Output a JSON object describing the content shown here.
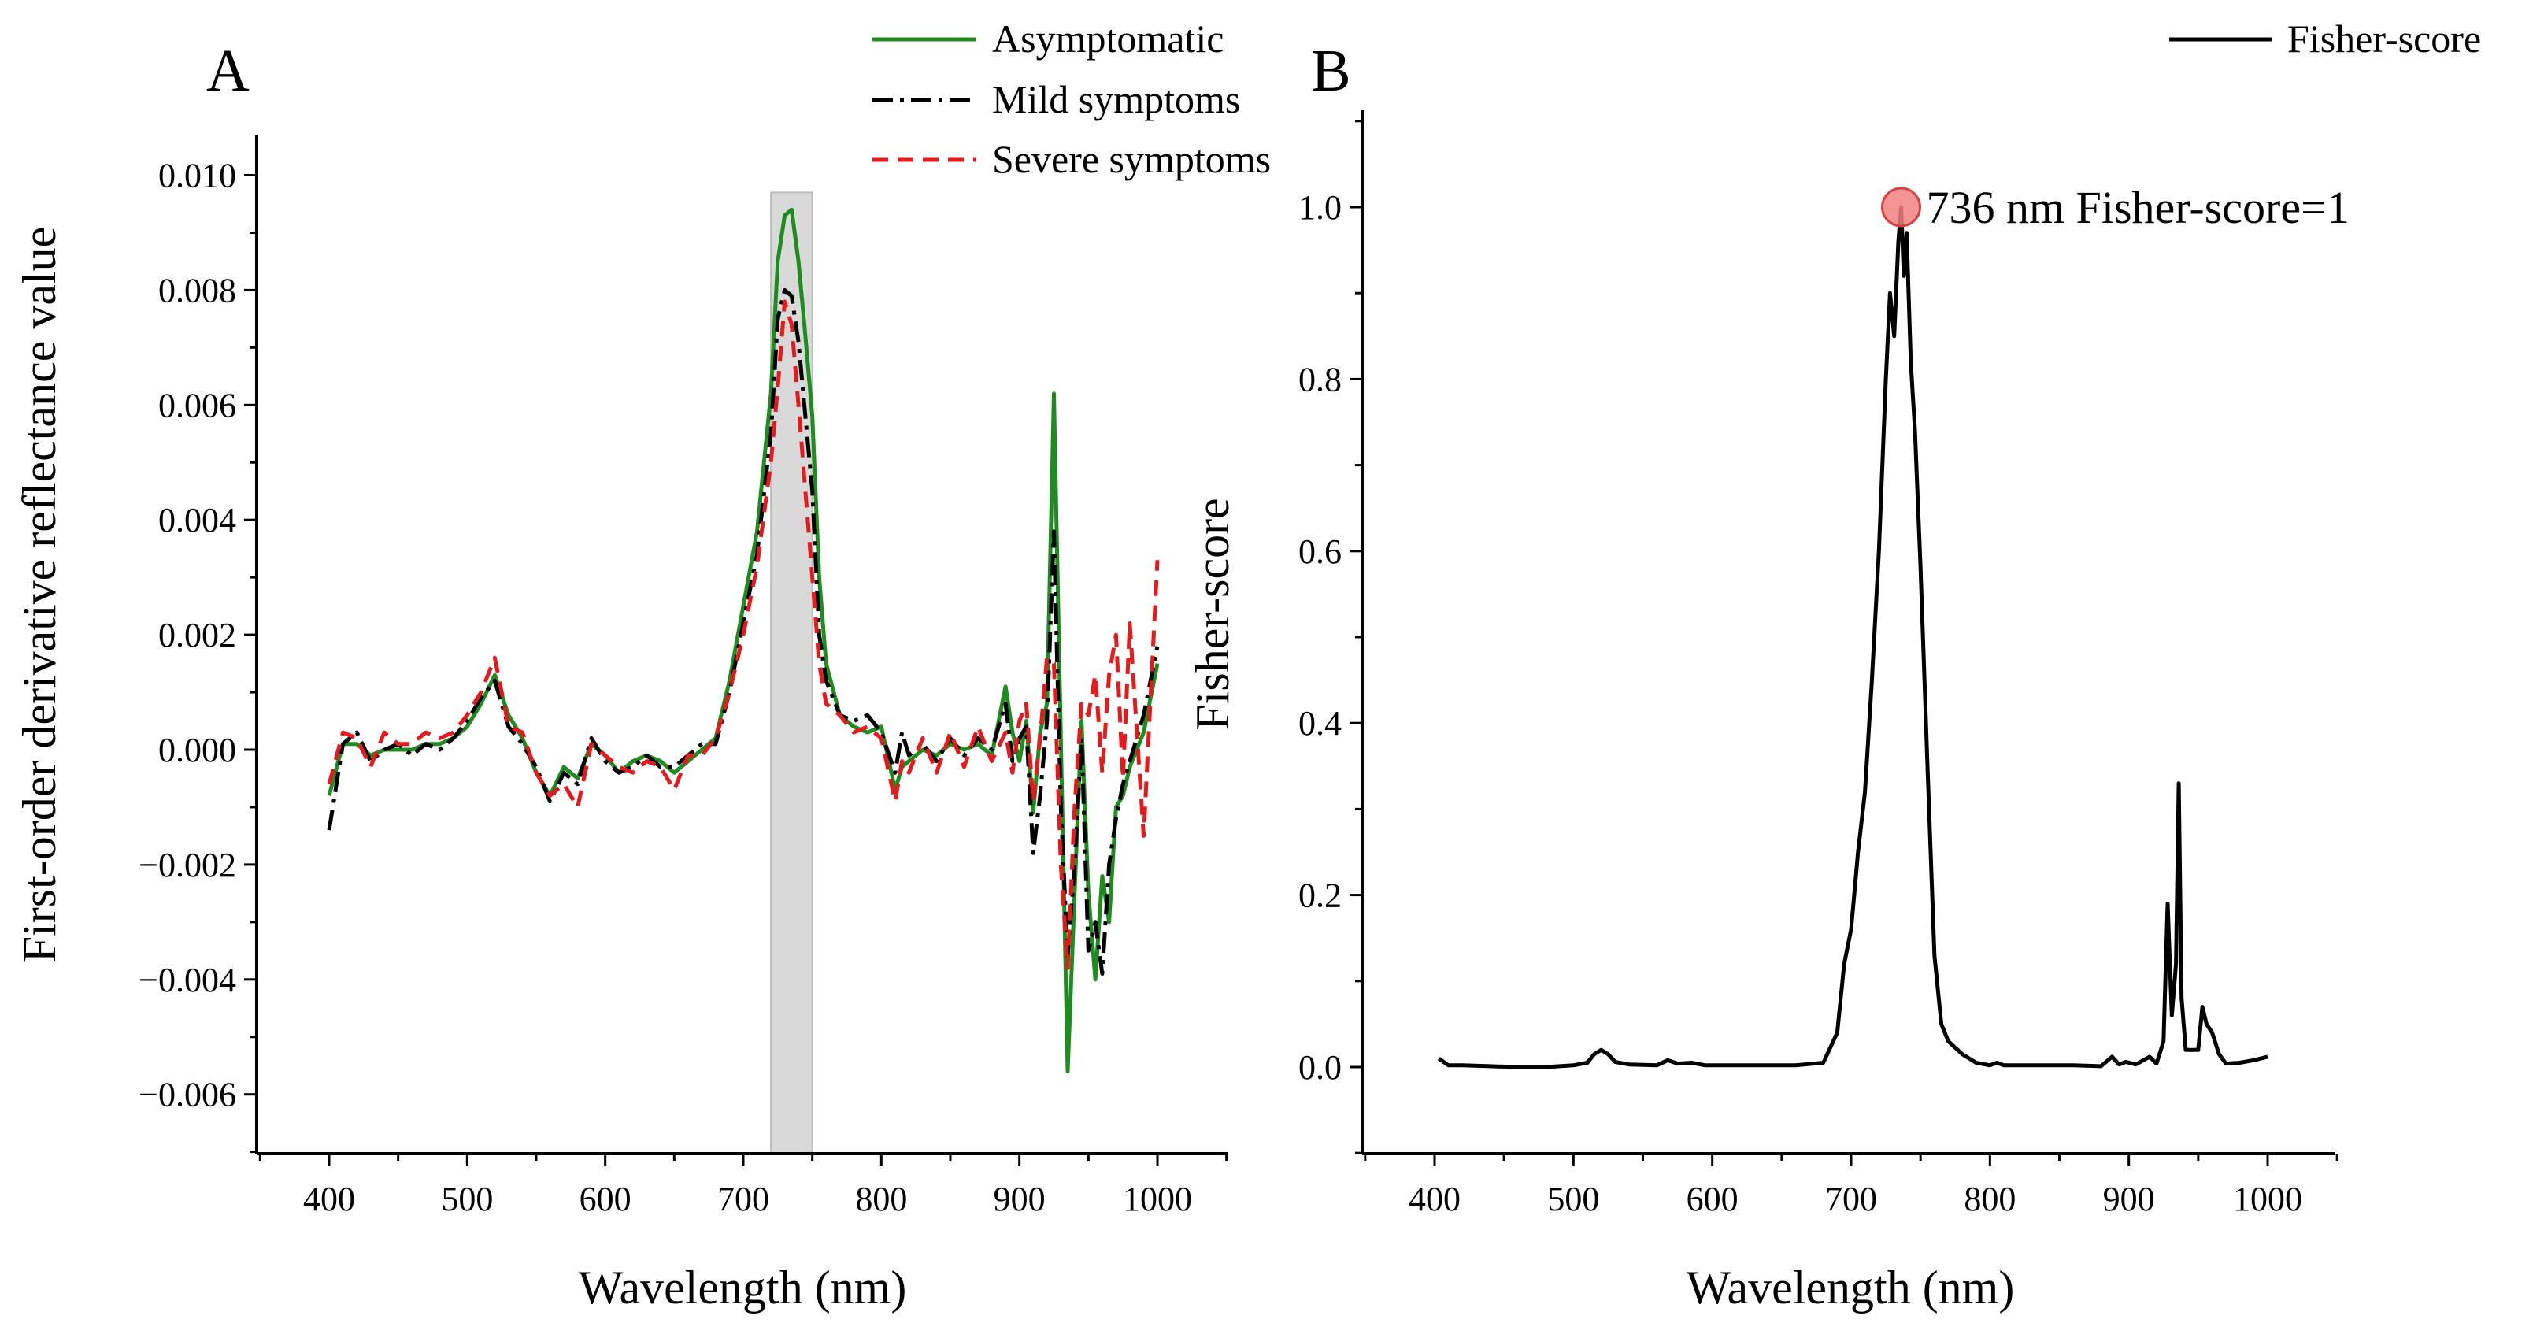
{
  "colors": {
    "asymptomatic": "#1e8c1e",
    "mild": "#000000",
    "severe": "#e41a1c",
    "fisher": "#000000",
    "highlight_band": "#d9d9d9",
    "peak_marker": "#f28080"
  },
  "chart_data": [
    {
      "panel_label": "A",
      "type": "line",
      "xlabel": "Wavelength (nm)",
      "ylabel": "First-order derivative reflectance value",
      "xlim": [
        350,
        1050
      ],
      "ylim": [
        -0.007,
        0.0105
      ],
      "xticks": [
        400,
        500,
        600,
        700,
        800,
        900,
        1000
      ],
      "yticks": [
        -0.006,
        -0.004,
        -0.002,
        0.0,
        0.002,
        0.004,
        0.006,
        0.008,
        0.01
      ],
      "ytick_labels": [
        "−0.006",
        "−0.004",
        "−0.002",
        "0.000",
        "0.002",
        "0.004",
        "0.006",
        "0.008",
        "0.010"
      ],
      "highlight_band": [
        720,
        750
      ],
      "legend": [
        "Asymptomatic",
        "Mild symptoms",
        "Severe symptoms"
      ],
      "series": [
        {
          "name": "Asymptomatic",
          "style": "solid",
          "x": [
            400,
            410,
            420,
            430,
            440,
            450,
            460,
            470,
            480,
            490,
            500,
            510,
            520,
            530,
            540,
            550,
            560,
            570,
            580,
            590,
            600,
            610,
            620,
            630,
            640,
            650,
            660,
            670,
            680,
            690,
            700,
            710,
            720,
            725,
            730,
            735,
            740,
            745,
            750,
            755,
            760,
            770,
            780,
            790,
            800,
            810,
            815,
            820,
            830,
            840,
            850,
            860,
            870,
            880,
            890,
            895,
            900,
            905,
            910,
            915,
            920,
            925,
            930,
            935,
            940,
            945,
            950,
            955,
            960,
            965,
            970,
            975,
            980,
            990,
            1000
          ],
          "y": [
            -0.0008,
            0.0001,
            0.0001,
            -0.0001,
            0.0,
            0.0,
            0.0,
            0.0001,
            0.0001,
            0.0002,
            0.0004,
            0.0008,
            0.0013,
            0.0006,
            0.0002,
            -0.0004,
            -0.0008,
            -0.0003,
            -0.0005,
            0.0001,
            -0.0001,
            -0.0004,
            -0.0002,
            -0.0001,
            -0.0002,
            -0.0004,
            -0.0002,
            0.0,
            0.0002,
            0.0012,
            0.0025,
            0.0038,
            0.0062,
            0.0085,
            0.0093,
            0.0094,
            0.0085,
            0.0072,
            0.0058,
            0.003,
            0.0015,
            0.0006,
            0.0004,
            0.0003,
            0.0004,
            -0.0007,
            -0.0003,
            -0.0002,
            0.0,
            -0.0001,
            0.0001,
            0.0,
            0.0001,
            -0.0001,
            0.0011,
            0.0003,
            -0.0002,
            0.0005,
            -0.0011,
            0.0003,
            0.0008,
            0.0062,
            0.0002,
            -0.0056,
            -0.0025,
            0.0005,
            -0.0025,
            -0.004,
            -0.0022,
            -0.003,
            -0.001,
            -0.0008,
            -0.0003,
            0.0003,
            0.0015
          ]
        },
        {
          "name": "Mild symptoms",
          "style": "dashdot",
          "x": [
            400,
            410,
            420,
            430,
            440,
            450,
            460,
            470,
            480,
            490,
            500,
            510,
            520,
            530,
            540,
            550,
            560,
            570,
            580,
            590,
            600,
            610,
            620,
            630,
            640,
            650,
            660,
            670,
            680,
            690,
            700,
            710,
            720,
            725,
            730,
            735,
            740,
            745,
            750,
            755,
            760,
            770,
            780,
            790,
            800,
            810,
            815,
            820,
            830,
            840,
            850,
            860,
            870,
            880,
            890,
            895,
            900,
            905,
            910,
            915,
            920,
            925,
            930,
            935,
            940,
            945,
            950,
            955,
            960,
            965,
            970,
            975,
            980,
            990,
            1000
          ],
          "y": [
            -0.0014,
            0.0001,
            0.0003,
            -0.0002,
            0.0,
            0.0001,
            -0.0001,
            0.0001,
            0.0,
            0.0002,
            0.0005,
            0.0009,
            0.0012,
            0.0004,
            0.0001,
            -0.0003,
            -0.0009,
            -0.0004,
            -0.0006,
            0.0002,
            -0.0002,
            -0.0004,
            -0.0003,
            -0.0001,
            -0.0003,
            -0.0003,
            -0.0001,
            0.0001,
            0.0001,
            0.001,
            0.0022,
            0.0034,
            0.0055,
            0.0075,
            0.008,
            0.0079,
            0.0071,
            0.0058,
            0.0045,
            0.002,
            0.0012,
            0.0006,
            0.0005,
            0.0006,
            0.0003,
            -0.0004,
            0.0003,
            -0.0001,
            0.0001,
            -0.0002,
            0.0002,
            -0.0001,
            0.0002,
            0.0,
            0.0008,
            -0.0002,
            0.0002,
            0.0004,
            -0.0018,
            -0.0008,
            0.0005,
            0.0038,
            -0.001,
            -0.0036,
            -0.002,
            0.0002,
            -0.0035,
            -0.003,
            -0.0039,
            -0.002,
            -0.0012,
            -0.0006,
            -0.0002,
            0.0006,
            0.0018
          ]
        },
        {
          "name": "Severe symptoms",
          "style": "dashed",
          "x": [
            400,
            410,
            420,
            430,
            440,
            450,
            460,
            470,
            480,
            490,
            500,
            510,
            520,
            530,
            540,
            550,
            560,
            570,
            580,
            590,
            600,
            610,
            620,
            630,
            640,
            650,
            660,
            670,
            680,
            690,
            700,
            710,
            720,
            725,
            730,
            735,
            740,
            745,
            750,
            755,
            760,
            770,
            780,
            790,
            800,
            810,
            815,
            820,
            830,
            840,
            850,
            860,
            870,
            880,
            890,
            895,
            900,
            905,
            910,
            915,
            920,
            925,
            930,
            935,
            940,
            945,
            950,
            955,
            960,
            965,
            970,
            975,
            980,
            990,
            1000
          ],
          "y": [
            -0.0006,
            0.0003,
            0.0002,
            -0.0003,
            0.0003,
            0.0001,
            0.0001,
            0.0003,
            0.0002,
            0.0003,
            0.0006,
            0.001,
            0.0016,
            0.0004,
            0.0003,
            -0.0004,
            -0.0008,
            -0.0006,
            -0.001,
            0.0001,
            -0.0001,
            -0.0003,
            -0.0004,
            -0.0002,
            -0.0003,
            -0.0007,
            -0.0001,
            -0.0001,
            0.0002,
            0.001,
            0.002,
            0.0032,
            0.005,
            0.0063,
            0.0078,
            0.0074,
            0.006,
            0.0045,
            0.003,
            0.0015,
            0.0008,
            0.0006,
            0.0003,
            0.0004,
            0.0002,
            -0.0009,
            -0.0002,
            -0.0004,
            0.0002,
            -0.0004,
            0.0003,
            -0.0003,
            0.0004,
            -0.0002,
            0.0003,
            -0.0004,
            0.0005,
            0.0008,
            -0.0009,
            0.0002,
            0.0016,
            0.0015,
            -0.002,
            -0.0038,
            -0.001,
            0.0008,
            0.0006,
            0.0013,
            -0.0004,
            0.0013,
            0.002,
            -0.0005,
            0.0022,
            -0.0015,
            0.0033
          ]
        }
      ]
    },
    {
      "panel_label": "B",
      "type": "line",
      "xlabel": "Wavelength (nm)",
      "ylabel": "Fisher-score",
      "xlim": [
        350,
        1050
      ],
      "ylim": [
        -0.1,
        1.1
      ],
      "xticks": [
        400,
        500,
        600,
        700,
        800,
        900,
        1000
      ],
      "yticks": [
        0.0,
        0.2,
        0.4,
        0.6,
        0.8,
        1.0
      ],
      "ytick_labels": [
        "0.0",
        "0.2",
        "0.4",
        "0.6",
        "0.8",
        "1.0"
      ],
      "legend": [
        "Fisher-score"
      ],
      "annotation": {
        "x": 736,
        "y": 1.0,
        "text": "736 nm Fisher-score=1"
      },
      "series": [
        {
          "name": "Fisher-score",
          "style": "solid",
          "x": [
            403,
            410,
            420,
            440,
            460,
            480,
            500,
            510,
            515,
            520,
            525,
            530,
            540,
            560,
            568,
            575,
            585,
            595,
            620,
            660,
            680,
            690,
            695,
            700,
            705,
            710,
            715,
            720,
            725,
            728,
            731,
            734,
            736,
            738,
            740,
            743,
            746,
            750,
            755,
            760,
            765,
            770,
            780,
            790,
            800,
            805,
            810,
            830,
            860,
            880,
            888,
            893,
            898,
            905,
            915,
            920,
            925,
            928,
            931,
            934,
            936,
            938,
            941,
            945,
            950,
            953,
            956,
            960,
            965,
            970,
            980,
            990,
            1000
          ],
          "y": [
            0.01,
            0.002,
            0.002,
            0.001,
            0.0,
            0.0,
            0.002,
            0.005,
            0.015,
            0.02,
            0.015,
            0.006,
            0.003,
            0.002,
            0.008,
            0.004,
            0.005,
            0.002,
            0.002,
            0.002,
            0.005,
            0.04,
            0.12,
            0.16,
            0.25,
            0.32,
            0.45,
            0.6,
            0.8,
            0.9,
            0.85,
            0.96,
            1.0,
            0.92,
            0.97,
            0.82,
            0.74,
            0.58,
            0.35,
            0.13,
            0.05,
            0.03,
            0.015,
            0.005,
            0.002,
            0.005,
            0.002,
            0.002,
            0.002,
            0.001,
            0.012,
            0.003,
            0.006,
            0.003,
            0.012,
            0.004,
            0.03,
            0.19,
            0.06,
            0.12,
            0.33,
            0.08,
            0.02,
            0.02,
            0.02,
            0.07,
            0.05,
            0.04,
            0.015,
            0.004,
            0.005,
            0.008,
            0.012
          ]
        }
      ]
    }
  ]
}
